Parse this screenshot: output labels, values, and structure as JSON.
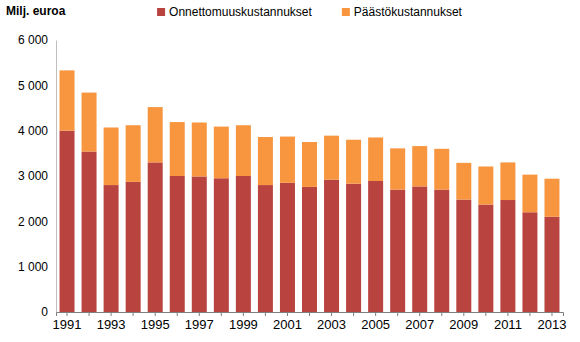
{
  "chart_data": {
    "type": "bar",
    "stacked": true,
    "legend": "top",
    "y_label": "Milj. euroa",
    "categories": [
      "1991",
      null,
      "1993",
      null,
      "1995",
      null,
      "1997",
      null,
      "1999",
      null,
      "2001",
      null,
      "2003",
      null,
      "2005",
      null,
      "2007",
      null,
      "2009",
      null,
      "2011",
      null,
      "2013"
    ],
    "series": [
      {
        "name": "Onnettomuuskustannukset",
        "color": "#b8433f",
        "values": [
          4000,
          3540,
          2800,
          2870,
          3300,
          3000,
          2990,
          2950,
          3000,
          2800,
          2850,
          2760,
          2920,
          2830,
          2890,
          2700,
          2770,
          2700,
          2480,
          2370,
          2470,
          2200,
          2100
        ]
      },
      {
        "name": "Päästökustannukset",
        "color": "#f7963f",
        "values": [
          1330,
          1300,
          1270,
          1250,
          1220,
          1190,
          1190,
          1140,
          1120,
          1060,
          1020,
          990,
          970,
          970,
          960,
          910,
          890,
          900,
          810,
          840,
          830,
          830,
          840
        ]
      }
    ],
    "ylim": [
      0,
      6000
    ],
    "yticks": [
      0,
      {
        "value": 1000,
        "label": "1 000"
      },
      {
        "value": 2000,
        "label": "2 000"
      },
      {
        "value": 3000,
        "label": "3 000"
      },
      {
        "value": 4000,
        "label": "4 000"
      },
      {
        "value": 5000,
        "label": "5 000"
      },
      {
        "value": 6000,
        "label": "6 000"
      }
    ],
    "grid": false
  }
}
